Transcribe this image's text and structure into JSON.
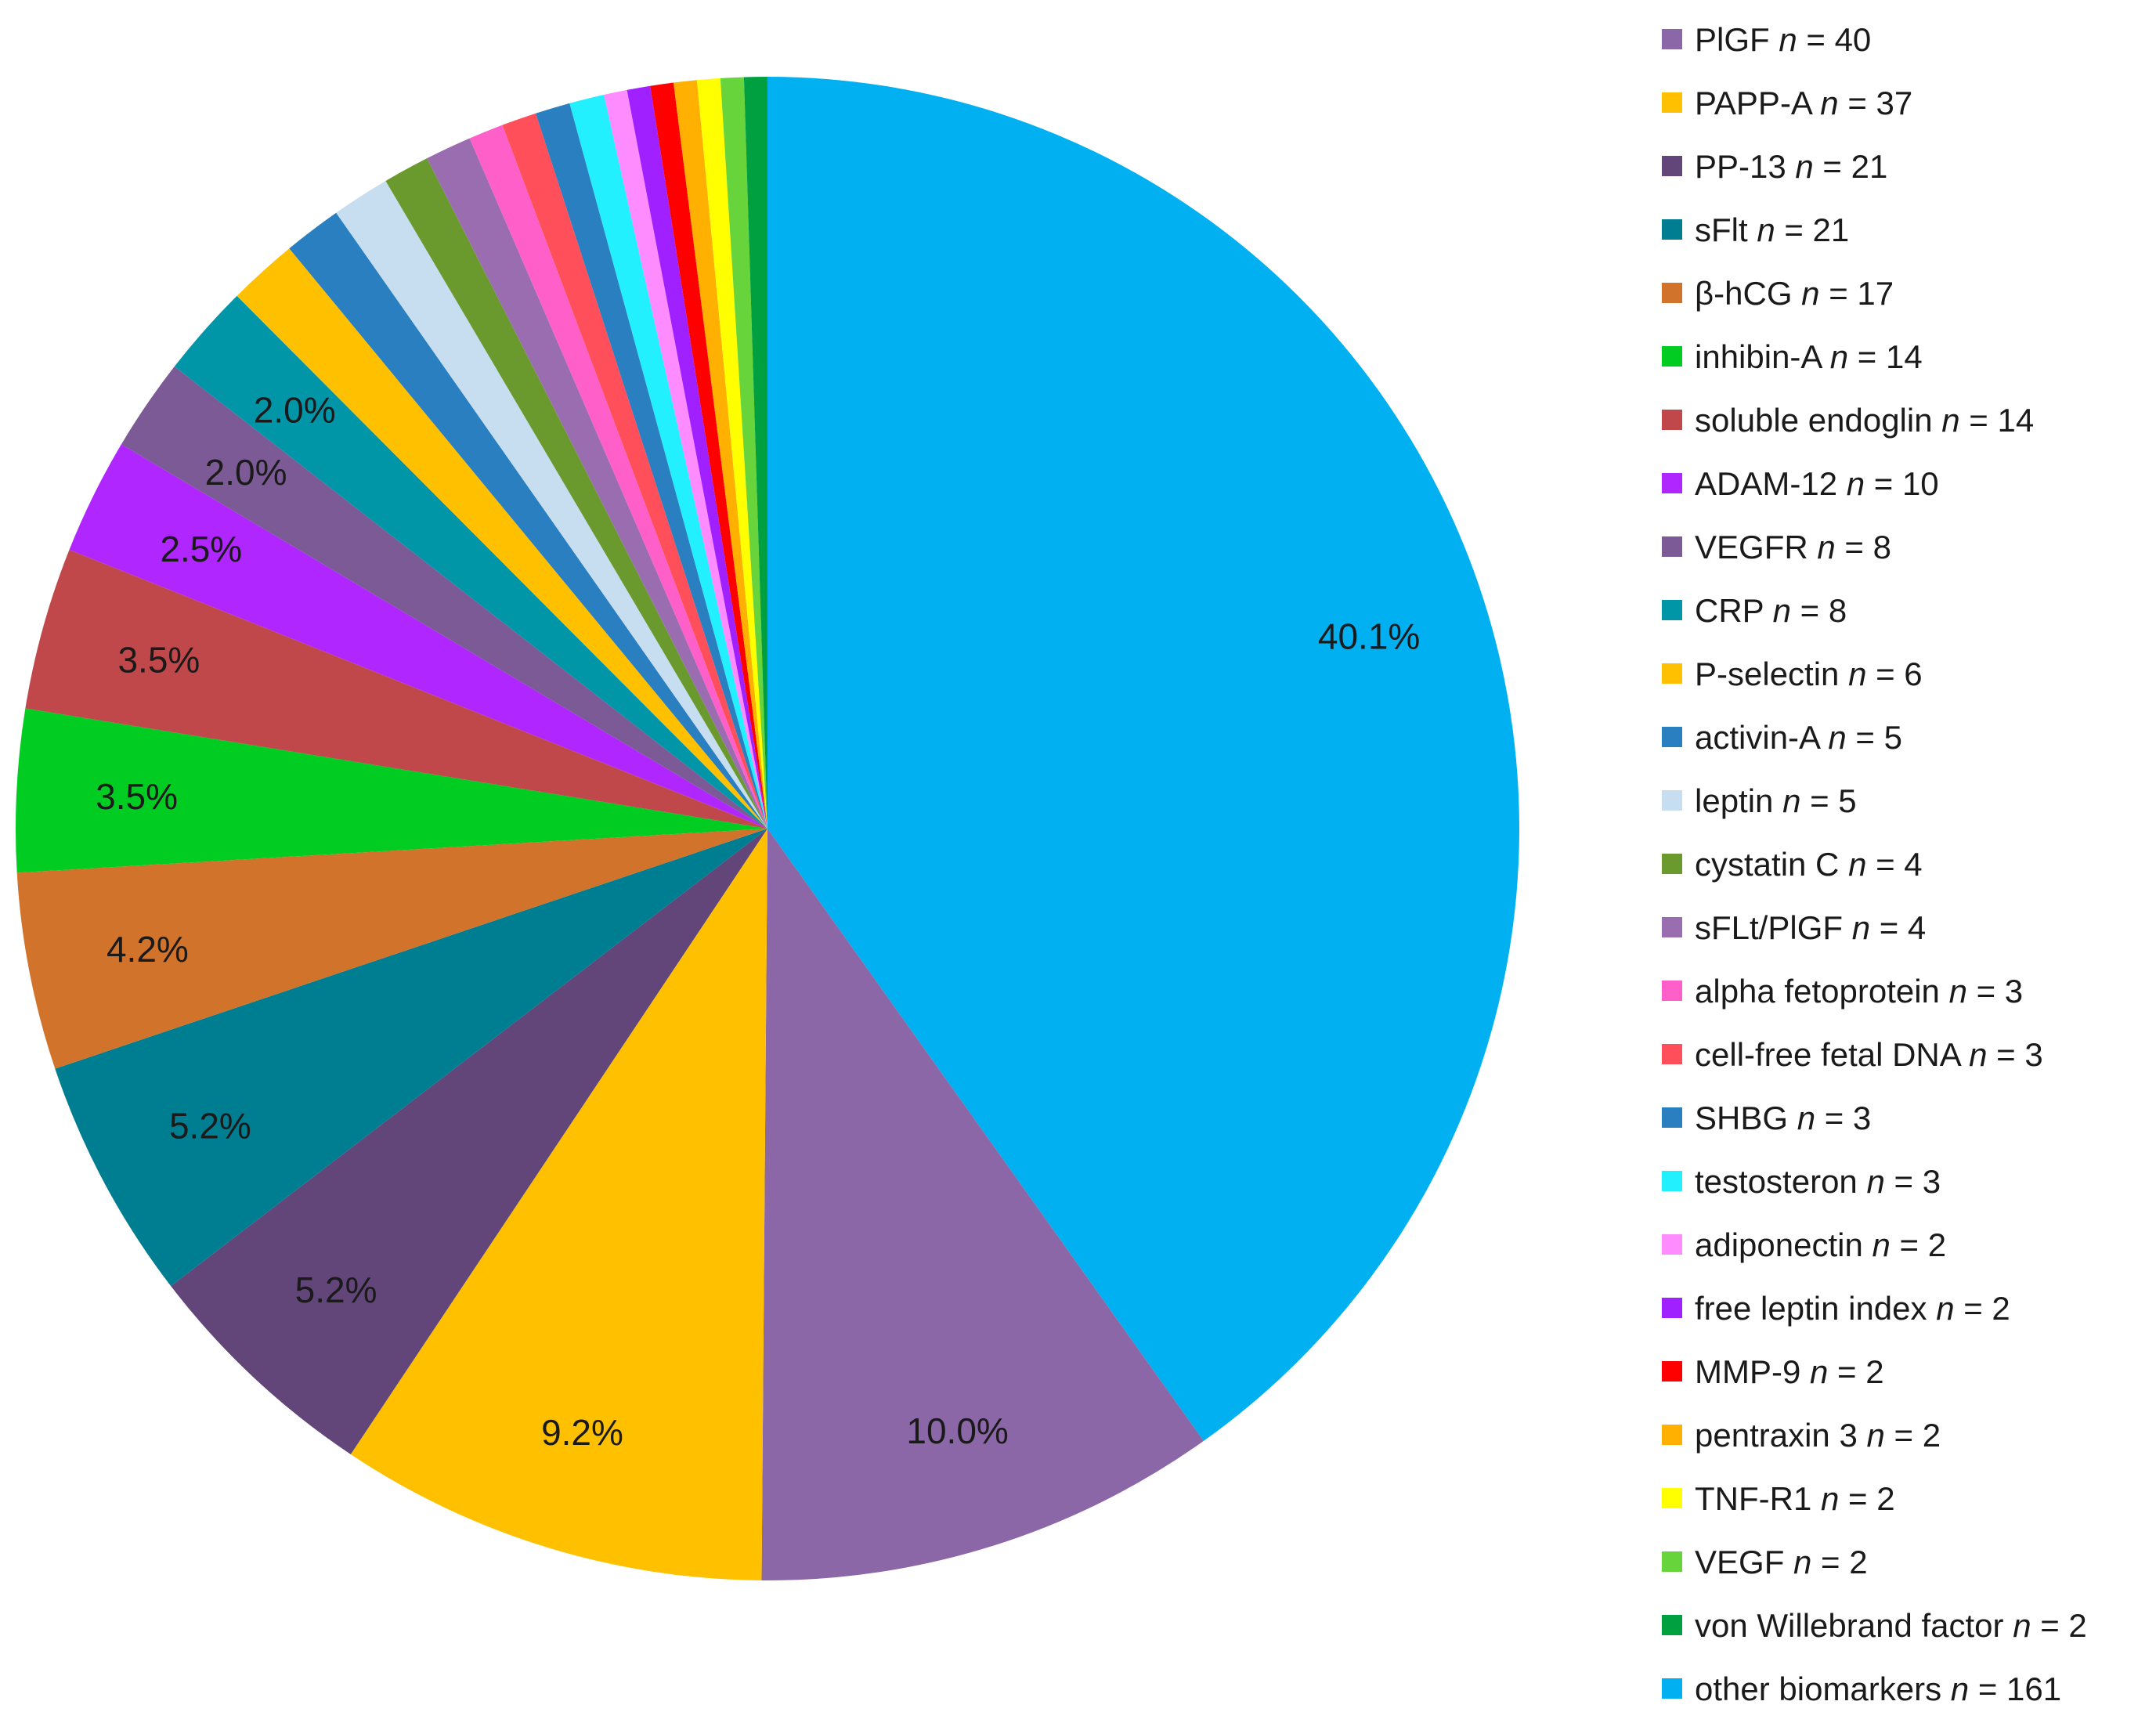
{
  "chart_data": {
    "type": "pie",
    "start_angle_deg": 0,
    "direction": "clockwise",
    "legend_placement": "right",
    "slices": [
      {
        "label": "other biomarkers",
        "n": "161",
        "value": 161,
        "pct_label": "40.1%",
        "color": "#00B0F0"
      },
      {
        "label": "PlGF",
        "n": "40",
        "value": 40,
        "pct_label": "10.0%",
        "color": "#8B67A7"
      },
      {
        "label": "PAPP-A",
        "n": "37",
        "value": 37,
        "pct_label": "9.2%",
        "color": "#FFC000"
      },
      {
        "label": "PP-13",
        "n": "21",
        "value": 21,
        "pct_label": "5.2%",
        "color": "#62467A"
      },
      {
        "label": "sFlt",
        "n": "21",
        "value": 21,
        "pct_label": "5.2%",
        "color": "#007E91"
      },
      {
        "label": "β-hCG",
        "n": "17",
        "value": 17,
        "pct_label": "4.2%",
        "color": "#D1732A"
      },
      {
        "label": "inhibin-A",
        "n": "14",
        "value": 14,
        "pct_label": "3.5%",
        "color": "#00CC22"
      },
      {
        "label": "soluble endoglin",
        "n": "14",
        "value": 14,
        "pct_label": "3.5%",
        "color": "#C0474A"
      },
      {
        "label": "ADAM-12",
        "n": "10",
        "value": 10,
        "pct_label": "2.5%",
        "color": "#B026FF"
      },
      {
        "label": "VEGFR",
        "n": "8",
        "value": 8,
        "pct_label": "2.0%",
        "color": "#7B5A96"
      },
      {
        "label": "CRP",
        "n": "8",
        "value": 8,
        "pct_label": "2.0%",
        "color": "#0096A8"
      },
      {
        "label": "P-selectin",
        "n": "6",
        "value": 6,
        "pct_label": "",
        "color": "#FFC000"
      },
      {
        "label": "activin-A",
        "n": "5",
        "value": 5,
        "pct_label": "",
        "color": "#2A7FC0"
      },
      {
        "label": "leptin",
        "n": "5",
        "value": 5,
        "pct_label": "",
        "color": "#C7DDF0"
      },
      {
        "label": "cystatin C",
        "n": "4",
        "value": 4,
        "pct_label": "",
        "color": "#6A9A2E"
      },
      {
        "label": "sFLt/PlGF",
        "n": "4",
        "value": 4,
        "pct_label": "",
        "color": "#9A6DB0"
      },
      {
        "label": "alpha fetoprotein",
        "n": "3",
        "value": 3,
        "pct_label": "",
        "color": "#FF5FC8"
      },
      {
        "label": "cell-free fetal DNA",
        "n": "3",
        "value": 3,
        "pct_label": "",
        "color": "#FF4F5A"
      },
      {
        "label": "SHBG",
        "n": "3",
        "value": 3,
        "pct_label": "",
        "color": "#2A7FC0"
      },
      {
        "label": "testosteron",
        "n": "3",
        "value": 3,
        "pct_label": "",
        "color": "#22F0FF"
      },
      {
        "label": "adiponectin",
        "n": "2",
        "value": 2,
        "pct_label": "",
        "color": "#FF8CFF"
      },
      {
        "label": "free leptin index",
        "n": "2",
        "value": 2,
        "pct_label": "",
        "color": "#A020FF"
      },
      {
        "label": "MMP-9",
        "n": "2",
        "value": 2,
        "pct_label": "",
        "color": "#FF0000"
      },
      {
        "label": "pentraxin 3",
        "n": "2",
        "value": 2,
        "pct_label": "",
        "color": "#FFB000"
      },
      {
        "label": "TNF-R1",
        "n": "2",
        "value": 2,
        "pct_label": "",
        "color": "#FFFF00"
      },
      {
        "label": "VEGF",
        "n": "2",
        "value": 2,
        "pct_label": "",
        "color": "#66D43A"
      },
      {
        "label": "von Willebrand factor",
        "n": "2",
        "value": 2,
        "pct_label": "",
        "color": "#00A040"
      }
    ],
    "legend_order": [
      "PlGF",
      "PAPP-A",
      "PP-13",
      "sFlt",
      "β-hCG",
      "inhibin-A",
      "soluble endoglin",
      "ADAM-12",
      "VEGFR",
      "CRP",
      "P-selectin",
      "activin-A",
      "leptin",
      "cystatin C",
      "sFLt/PlGF",
      "alpha fetoprotein",
      "cell-free fetal DNA",
      "SHBG",
      "testosteron",
      "adiponectin",
      "free leptin index",
      "MMP-9",
      "pentraxin 3",
      "TNF-R1",
      "VEGF",
      "von Willebrand factor",
      "other biomarkers"
    ],
    "legend_n_symbol": "n",
    "legend_equals": "="
  }
}
